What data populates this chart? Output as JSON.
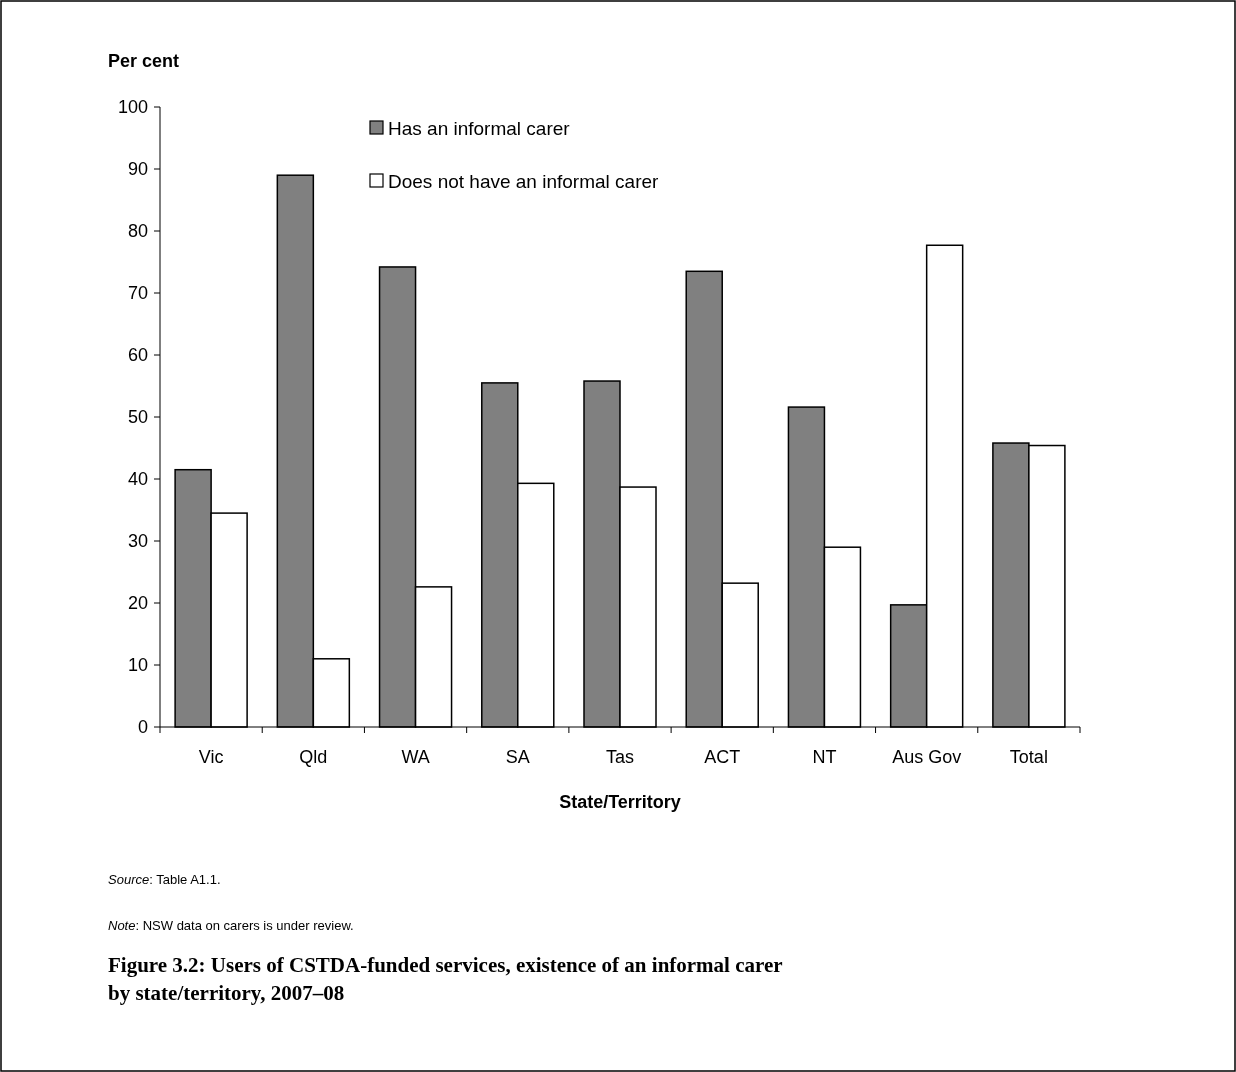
{
  "chart_data": {
    "type": "bar",
    "title": "Figure 3.2: Users of CSTDA-funded services, existence of an informal carer by state/territory, 2007–08",
    "xlabel": "State/Territory",
    "ylabel": "Per cent",
    "categories": [
      "Vic",
      "Qld",
      "WA",
      "SA",
      "Tas",
      "ACT",
      "NT",
      "Aus Gov",
      "Total"
    ],
    "series": [
      {
        "name": "Has an informal carer",
        "color": "#808080",
        "values": [
          41.5,
          89,
          74.2,
          55.5,
          55.8,
          73.5,
          51.6,
          19.7,
          45.8
        ]
      },
      {
        "name": "Does not have an informal carer",
        "color": "#ffffff",
        "values": [
          34.5,
          11,
          22.6,
          39.3,
          38.7,
          23.2,
          29,
          77.7,
          45.4
        ]
      }
    ],
    "ylim": [
      0,
      100
    ],
    "yticks": [
      0,
      10,
      20,
      30,
      40,
      50,
      60,
      70,
      80,
      90,
      100
    ],
    "grid": false,
    "legend": "top",
    "annotations": [
      "Source: Table A1.1.",
      "Note: NSW data on carers is under review."
    ]
  }
}
